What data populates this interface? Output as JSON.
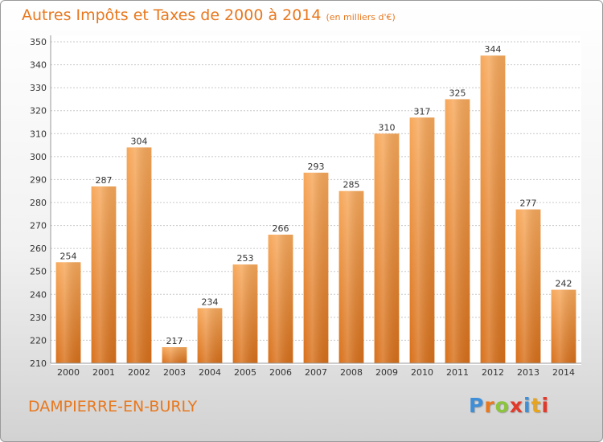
{
  "header": {
    "title": "Autres Impôts et Taxes de 2000 à 2014",
    "subtitle": "(en milliers d'€)"
  },
  "footer": {
    "town": "DAMPIERRE-EN-BURLY",
    "logo_letters": [
      "P",
      "r",
      "o",
      "x",
      "i",
      "t",
      "i"
    ],
    "logo_colors": [
      "#3f8fd8",
      "#e8781e",
      "#8cc43c",
      "#e23a2a",
      "#3f8fd8",
      "#e8a41e",
      "#e23a2a"
    ]
  },
  "colors": {
    "bar_light": "#f7a85a",
    "bar_dark": "#d8701a",
    "text": "#333333",
    "grid": "#c8c8c8"
  },
  "chart_data": {
    "type": "bar",
    "categories": [
      "2000",
      "2001",
      "2002",
      "2003",
      "2004",
      "2005",
      "2006",
      "2007",
      "2008",
      "2009",
      "2010",
      "2011",
      "2012",
      "2013",
      "2014"
    ],
    "values": [
      254,
      287,
      304,
      217,
      234,
      253,
      266,
      293,
      285,
      310,
      317,
      325,
      344,
      277,
      242
    ],
    "ylim": [
      210,
      350
    ],
    "yticks": [
      210,
      220,
      230,
      240,
      250,
      260,
      270,
      280,
      290,
      300,
      310,
      320,
      330,
      340,
      350
    ],
    "grid": true,
    "data_labels": true
  }
}
